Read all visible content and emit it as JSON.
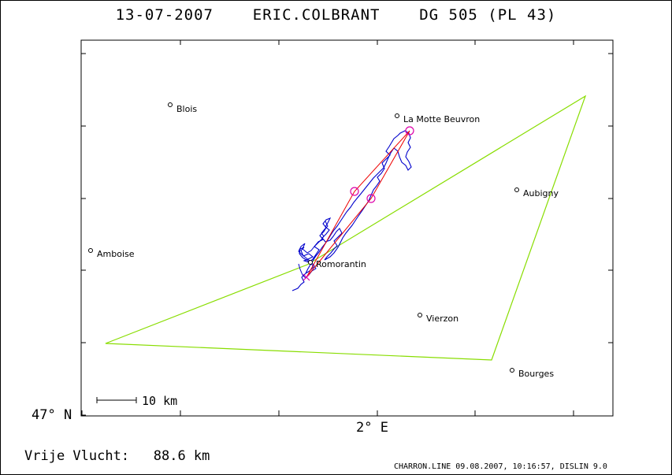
{
  "title": "13-07-2007    ERIC.COLBRANT    DG 505 (PL 43)",
  "map": {
    "towns": [
      {
        "name": "Blois"
      },
      {
        "name": "La Motte Beuvron"
      },
      {
        "name": "Aubigny"
      },
      {
        "name": "Amboise"
      },
      {
        "name": "Romorantin"
      },
      {
        "name": "Vierzon"
      },
      {
        "name": "Bourges"
      }
    ],
    "lat_label": "47° N",
    "lon_label": "2° E",
    "scale_label": "10 km",
    "colors": {
      "task": "#88dd00",
      "track": "#0000cc",
      "optimized": "#ee0000",
      "turnpoint": "#dd00aa"
    }
  },
  "stats": {
    "distance_line": "Vrije Vlucht:   88.6 km"
  },
  "footer": "CHARRON.LINE 09.08.2007, 10:16:57, DISLIN 9.0"
}
